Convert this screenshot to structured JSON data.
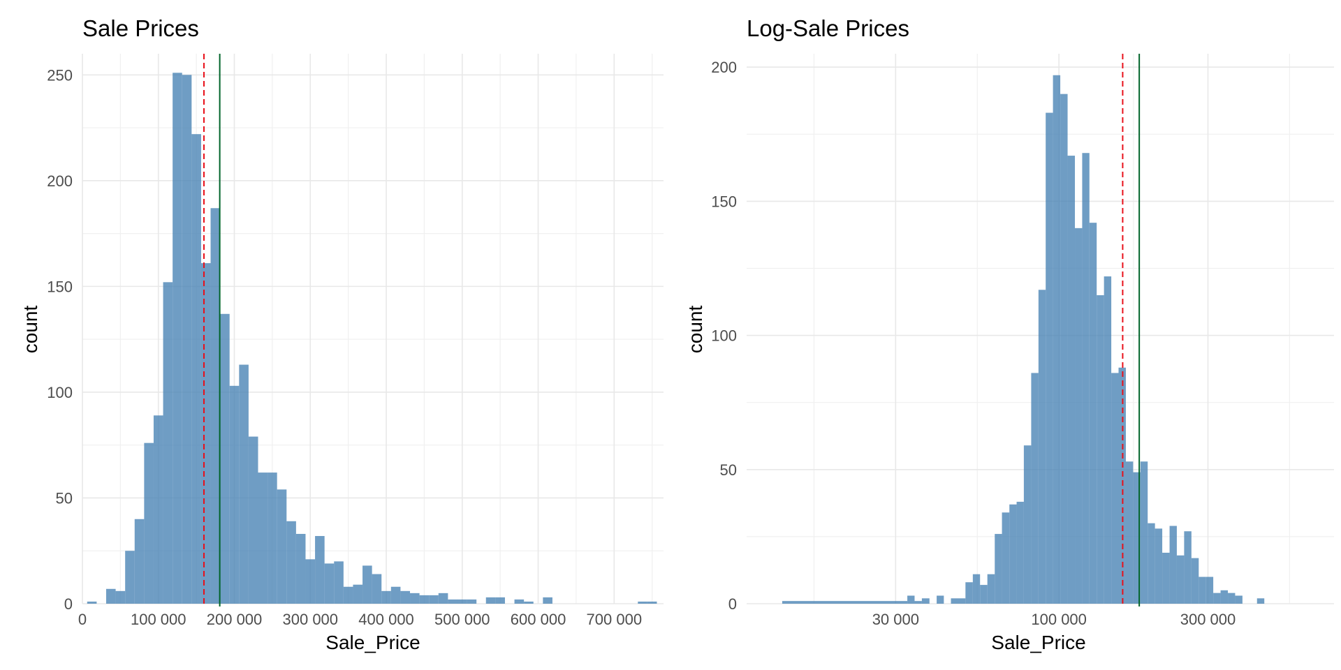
{
  "chart_data": [
    {
      "type": "bar",
      "title": "Sale Prices",
      "xlabel": "Sale_Price",
      "ylabel": "count",
      "x_scale": "linear",
      "xlim": [
        0,
        765000
      ],
      "ylim": [
        0,
        260
      ],
      "x_ticks": [
        0,
        100000,
        200000,
        300000,
        400000,
        500000,
        600000,
        700000
      ],
      "x_tick_labels": [
        "0",
        "100 000",
        "200 000",
        "300 000",
        "400 000",
        "500 000",
        "600 000",
        "700 000"
      ],
      "y_ticks": [
        0,
        50,
        100,
        150,
        200,
        250
      ],
      "y_tick_labels": [
        "0",
        "50",
        "100",
        "150",
        "200",
        "250"
      ],
      "bar_color": "#4682B4",
      "bin_width": 12500,
      "bin_starts": [
        6250,
        18750,
        31250,
        43750,
        56250,
        68750,
        81250,
        93750,
        106250,
        118750,
        131250,
        143750,
        156250,
        168750,
        181250,
        193750,
        206250,
        218750,
        231250,
        243750,
        256250,
        268750,
        281250,
        293750,
        306250,
        318750,
        331250,
        343750,
        356250,
        368750,
        381250,
        393750,
        406250,
        418750,
        431250,
        443750,
        456250,
        468750,
        481250,
        493750,
        506250,
        518750,
        531250,
        543750,
        556250,
        568750,
        581250,
        593750,
        606250,
        618750,
        631250,
        643750,
        656250,
        668750,
        681250,
        693750,
        706250,
        718750,
        731250,
        743750
      ],
      "counts": [
        1,
        0,
        7,
        6,
        25,
        40,
        76,
        89,
        152,
        251,
        250,
        222,
        161,
        187,
        137,
        103,
        113,
        79,
        62,
        62,
        54,
        39,
        33,
        21,
        32,
        19,
        20,
        8,
        9,
        18,
        14,
        6,
        8,
        6,
        5,
        4,
        4,
        5,
        2,
        2,
        2,
        0,
        3,
        3,
        0,
        2,
        1,
        0,
        3,
        0,
        0,
        0,
        0,
        0,
        0,
        0,
        0,
        0,
        1,
        1
      ],
      "reference_lines": [
        {
          "value": 160000,
          "color": "#E8101A",
          "style": "dashed"
        },
        {
          "value": 180796,
          "color": "#00642A",
          "style": "solid"
        }
      ]
    },
    {
      "type": "bar",
      "title": "Log-Sale Prices",
      "xlabel": "Sale_Price",
      "ylabel": "count",
      "x_scale": "log10",
      "xlim": [
        10000,
        760000
      ],
      "ylim": [
        0,
        205
      ],
      "x_ticks": [
        30000,
        100000,
        300000
      ],
      "x_tick_labels": [
        "30 000",
        "100 000",
        "300 000"
      ],
      "y_ticks": [
        0,
        50,
        100,
        150,
        200
      ],
      "y_tick_labels": [
        "0",
        "50",
        "100",
        "150",
        "200"
      ],
      "bar_color": "#4682B4",
      "bin_starts": [
        13000,
        32700,
        34500,
        36400,
        38500,
        40600,
        42800,
        45100,
        47600,
        50200,
        53000,
        55900,
        59000,
        62300,
        65700,
        69400,
        73200,
        77200,
        81500,
        86000,
        90700,
        95700,
        101000,
        106600,
        112500,
        118700,
        125200,
        132100,
        139400,
        147100,
        155200,
        163800,
        172800,
        182400,
        192400,
        203000,
        214200,
        226100,
        238500,
        251700,
        265600,
        280300,
        295700,
        312000,
        329300,
        347500,
        366600,
        386900,
        408300,
        430800,
        454600,
        479700,
        506200,
        534100,
        563600,
        594700,
        627600,
        662200,
        698800
      ],
      "counts": [
        1,
        3,
        1,
        2,
        0,
        3,
        0,
        2,
        2,
        8,
        11,
        7,
        11,
        26,
        34,
        37,
        38,
        59,
        86,
        117,
        183,
        197,
        190,
        167,
        140,
        168,
        142,
        115,
        122,
        86,
        88,
        53,
        49,
        53,
        30,
        28,
        19,
        29,
        18,
        27,
        17,
        10,
        10,
        4,
        5,
        4,
        3,
        0,
        0,
        2,
        0,
        0,
        0,
        0,
        0,
        0,
        0,
        0,
        0
      ],
      "reference_lines": [
        {
          "value": 160000,
          "color": "#E8101A",
          "style": "dashed"
        },
        {
          "value": 180796,
          "color": "#00642A",
          "style": "solid"
        }
      ]
    }
  ]
}
